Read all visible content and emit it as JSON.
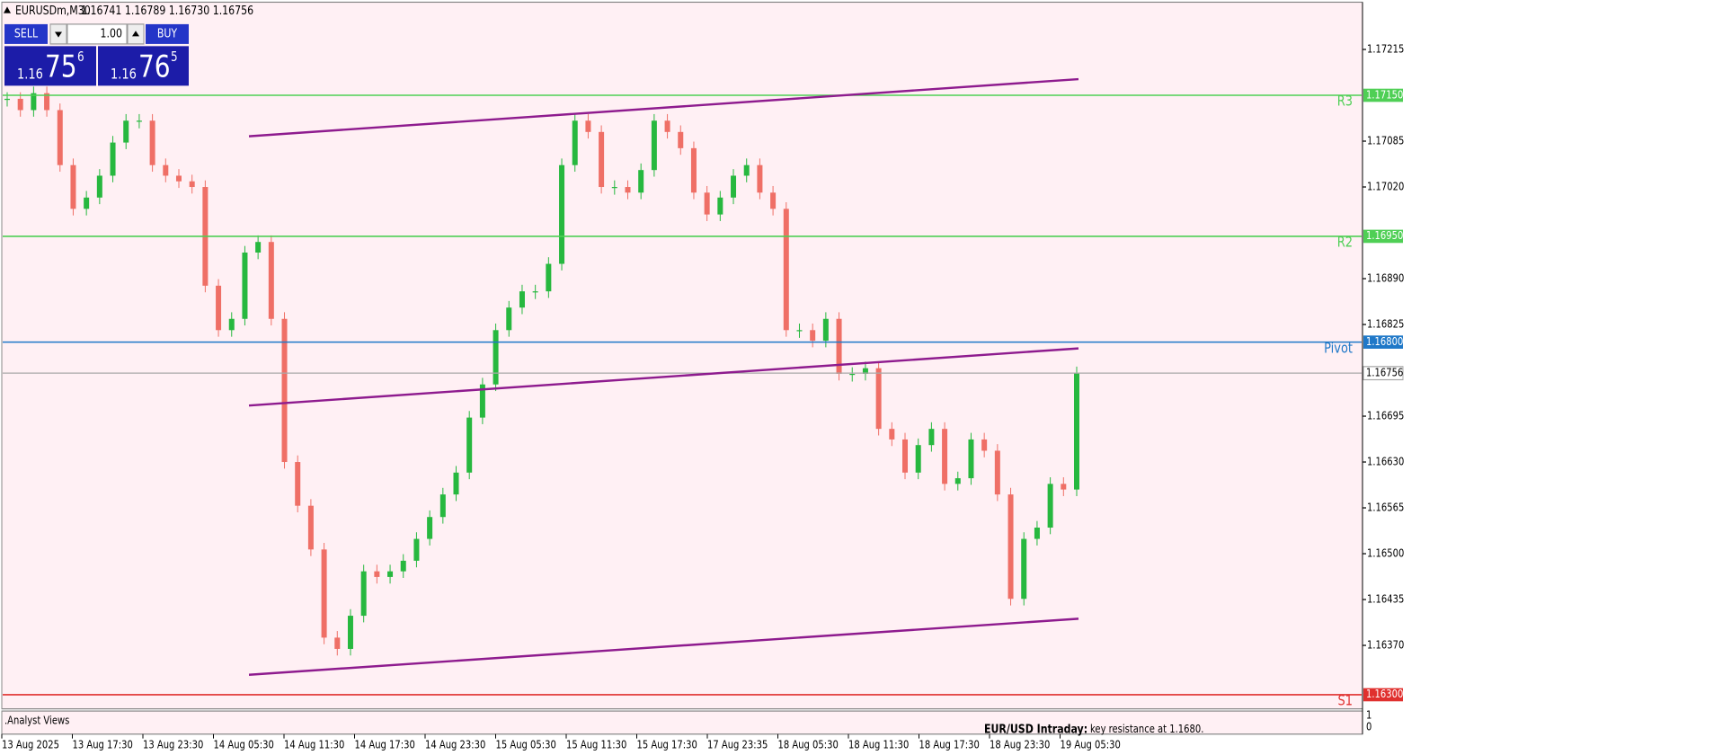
{
  "header": {
    "symbol": "EURUSDm,M30",
    "ohlc": "1.16741 1.16789 1.16730 1.16756"
  },
  "trade_panel": {
    "sell": "SELL",
    "buy": "BUY",
    "volume": "1.00",
    "sell_big": "1.16",
    "sell_pips": "75",
    "sell_frac": "6",
    "buy_big": "1.16",
    "buy_pips": "76",
    "buy_frac": "5"
  },
  "chart": {
    "type": "candlestick",
    "ylim": [
      1.1628,
      1.17282
    ],
    "yticks": [
      1.17215,
      1.17085,
      {
        "value": 1.1702,
        "label": "1.17020"
      },
      {
        "value": 1.1689,
        "label": "1.16890"
      },
      1.16825,
      1.16695,
      {
        "value": 1.1663,
        "label": "1.16630"
      },
      1.16565,
      {
        "value": 1.165,
        "label": "1.16500"
      },
      1.16435,
      {
        "value": 1.1637,
        "label": "1.16370"
      }
    ],
    "up_color": "#27b83f",
    "down_color": "#ef6f66",
    "closes": [
      1.17145,
      1.17129,
      1.17153,
      1.17129,
      1.17051,
      1.16989,
      1.17005,
      1.17036,
      1.17083,
      1.17114,
      1.17114,
      1.17051,
      1.17036,
      1.17028,
      1.1702,
      1.1688,
      1.16817,
      1.16833,
      1.16927,
      1.16942,
      1.16833,
      1.1663,
      1.16568,
      1.16506,
      1.16381,
      1.16365,
      1.16412,
      1.16475,
      1.16467,
      1.16475,
      1.1649,
      1.16521,
      1.16552,
      1.16584,
      1.16615,
      1.16693,
      1.1674,
      1.16817,
      1.16849,
      1.16872,
      1.16872,
      1.16911,
      1.17051,
      1.17114,
      1.17098,
      1.1702,
      1.1702,
      1.17012,
      1.17044,
      1.17114,
      1.17098,
      1.17075,
      1.17012,
      1.16981,
      1.17005,
      1.17036,
      1.17051,
      1.17012,
      1.16989,
      1.16817,
      1.16817,
      1.16802,
      1.16833,
      1.16755,
      1.16755,
      1.16763,
      1.16677,
      1.16662,
      1.16615,
      1.16654,
      1.16677,
      1.16599,
      1.16607,
      1.16662,
      1.16646,
      1.16584,
      1.16436,
      1.16521,
      1.16537,
      1.16599,
      1.16591,
      1.16756
    ],
    "levels": [
      {
        "name": "R3",
        "value": 1.1715,
        "label": "1.17150",
        "color": "#4fcf55"
      },
      {
        "name": "R2",
        "value": 1.1695,
        "label": "1.16950",
        "color": "#4fcf55"
      },
      {
        "name": "Pivot",
        "value": 1.168,
        "label": "1.16800",
        "color": "#1f78c8"
      },
      {
        "name": "S1",
        "value": 1.163,
        "label": "1.16300",
        "color": "#e0302e"
      }
    ],
    "last_price": {
      "value": 1.16756,
      "label": "1.16756",
      "color": "#a8a8a8"
    },
    "time_labels": [
      "13 Aug 2025",
      "13 Aug 17:30",
      "13 Aug 23:30",
      "14 Aug 05:30",
      "14 Aug 11:30",
      "14 Aug 17:30",
      "14 Aug 23:30",
      "15 Aug 05:30",
      "15 Aug 11:30",
      "15 Aug 17:30",
      "17 Aug 23:35",
      "18 Aug 05:30",
      "18 Aug 11:30",
      "18 Aug 17:30",
      "18 Aug 23:30",
      "19 Aug 05:30"
    ]
  },
  "indicator_panel": {
    "name": ".Analyst Views",
    "comment_title": "EUR/USD Intraday:",
    "comment": "key resistance at 1.1680.",
    "axis_top": "1",
    "axis_bottom": "0"
  }
}
